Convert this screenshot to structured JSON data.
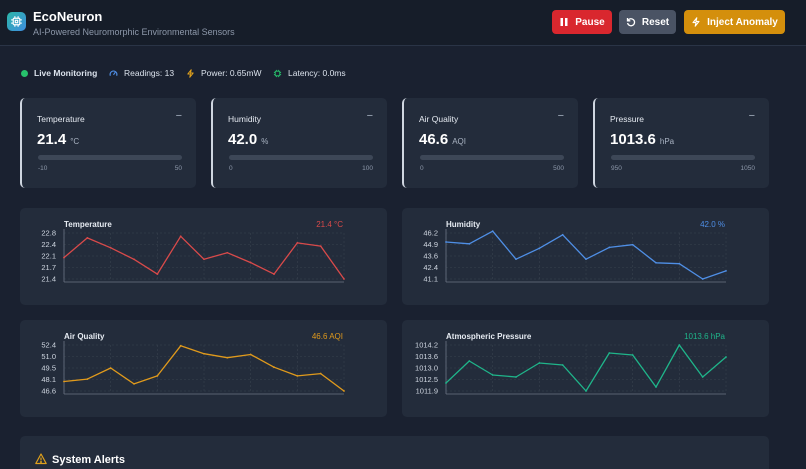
{
  "app": {
    "title": "EcoNeuron",
    "subtitle": "AI-Powered Neuromorphic Environmental Sensors",
    "accent": "#2bb6a8"
  },
  "toolbar": {
    "pause_label": "Pause",
    "reset_label": "Reset",
    "inject_label": "Inject Anomaly",
    "pause_color": "#d9272e",
    "reset_color": "#4a5364",
    "inject_color": "#d48f0c"
  },
  "status": {
    "live": "Live Monitoring",
    "readings": "Readings: 13",
    "power": "Power: 0.65mW",
    "latency": "Latency: 0.0ms"
  },
  "cards": [
    {
      "label": "Temperature",
      "value": "21.4",
      "unit": "°C",
      "min": "-10",
      "max": "50",
      "icon": "minus-icon"
    },
    {
      "label": "Humidity",
      "value": "42.0",
      "unit": "%",
      "min": "0",
      "max": "100",
      "icon": "minus-icon"
    },
    {
      "label": "Air Quality",
      "value": "46.6",
      "unit": "AQI",
      "min": "0",
      "max": "500",
      "icon": "minus-icon"
    },
    {
      "label": "Pressure",
      "value": "1013.6",
      "unit": "hPa",
      "min": "950",
      "max": "1050",
      "icon": "minus-icon"
    }
  ],
  "chart_data": [
    {
      "type": "line",
      "title": "Temperature",
      "reading": "21.4 °C",
      "color": "#d94a4a",
      "yticks": [
        "22.8",
        "22.4",
        "22.1",
        "21.7",
        "21.4"
      ],
      "ylim": [
        21.4,
        22.8
      ],
      "grid": true,
      "values": [
        22.05,
        22.65,
        22.35,
        22.0,
        21.55,
        22.7,
        22.0,
        22.2,
        21.9,
        21.55,
        22.5,
        22.4,
        21.4
      ]
    },
    {
      "type": "line",
      "title": "Humidity",
      "reading": "42.0 %",
      "color": "#4f8fe6",
      "yticks": [
        "46.2",
        "44.9",
        "43.6",
        "42.4",
        "41.1"
      ],
      "ylim": [
        41.1,
        46.2
      ],
      "grid": true,
      "values": [
        45.2,
        45.0,
        46.4,
        43.3,
        44.5,
        46.0,
        43.3,
        44.6,
        44.9,
        42.9,
        42.8,
        41.1,
        42.0
      ]
    },
    {
      "type": "line",
      "title": "Air Quality",
      "reading": "46.6 AQI",
      "color": "#e09a1c",
      "yticks": [
        "52.4",
        "51.0",
        "49.5",
        "48.1",
        "46.6"
      ],
      "ylim": [
        46.6,
        52.4
      ],
      "grid": true,
      "values": [
        47.8,
        48.1,
        49.5,
        47.5,
        48.5,
        52.3,
        51.3,
        50.8,
        51.2,
        49.6,
        48.5,
        48.8,
        46.6
      ]
    },
    {
      "type": "line",
      "title": "Atmospheric Pressure",
      "reading": "1013.6 hPa",
      "color": "#1fb58a",
      "yticks": [
        "1014.2",
        "1013.6",
        "1013.0",
        "1012.5",
        "1011.9"
      ],
      "ylim": [
        1011.9,
        1014.2
      ],
      "grid": true,
      "values": [
        1012.3,
        1013.4,
        1012.7,
        1012.6,
        1013.3,
        1013.2,
        1011.9,
        1013.8,
        1013.7,
        1012.1,
        1014.2,
        1012.6,
        1013.6
      ]
    }
  ],
  "alerts": {
    "title": "System Alerts",
    "icon": "warning-icon",
    "icon_color": "#e0a11c"
  }
}
